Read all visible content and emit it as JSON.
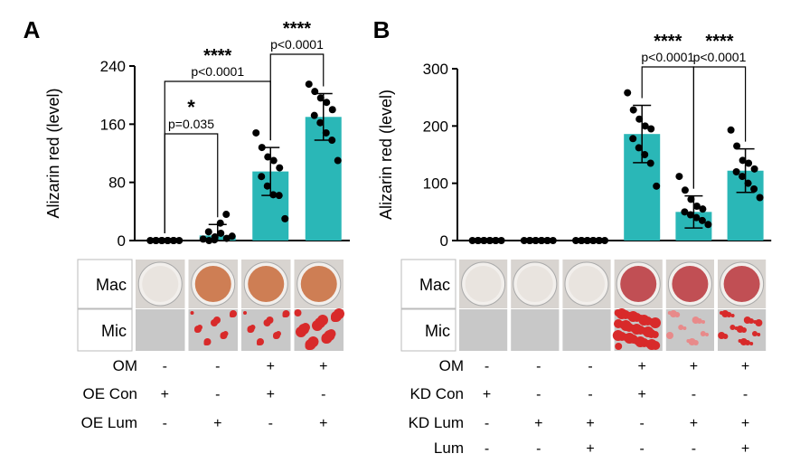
{
  "colors": {
    "bar": "#2ab7b7",
    "point": "#000000",
    "axis": "#000000",
    "mac_light_well": "#e9e4df",
    "mac_red_well": "#b8323a",
    "mac_orange_well": "#c86a3a",
    "mic_gray": "#c8c8c8",
    "mic_red": "#d82a2a"
  },
  "chart_data": [
    {
      "type": "bar",
      "panel_label": "A",
      "ylabel": "Alizarin red (level)",
      "ylim": [
        0,
        240
      ],
      "yticks": [
        "0",
        "80",
        "160",
        "240"
      ],
      "ytick_values": [
        0,
        80,
        160,
        240
      ],
      "categories": [
        "OE Con",
        "OE Lum",
        "OE Con + OM",
        "OE Lum + OM"
      ],
      "means": [
        0,
        7,
        95,
        170
      ],
      "errors": [
        0,
        15,
        33,
        32
      ],
      "points": [
        [
          0,
          0,
          0,
          0,
          0,
          0,
          0,
          0,
          0,
          0
        ],
        [
          2,
          0,
          5,
          10,
          3,
          12,
          1,
          24,
          36,
          6
        ],
        [
          148,
          128,
          115,
          110,
          100,
          88,
          75,
          63,
          62,
          30
        ],
        [
          215,
          205,
          196,
          190,
          180,
          172,
          162,
          148,
          138,
          110
        ]
      ],
      "comparisons": [
        {
          "from": 0,
          "to": 1,
          "stars": "*",
          "p": "p=0.035"
        },
        {
          "from": 0,
          "to": 2,
          "stars": "****",
          "p": "p<0.0001"
        },
        {
          "from": 2,
          "to": 3,
          "stars": "****",
          "p": "p<0.0001"
        }
      ],
      "image_rows": [
        {
          "label": "Mac",
          "kind": "mac",
          "tones": [
            "light",
            "orange",
            "orange",
            "orange"
          ]
        },
        {
          "label": "Mic",
          "kind": "mic",
          "tones": [
            "gray",
            "spots",
            "spots",
            "dense"
          ]
        }
      ],
      "conditions": [
        {
          "label": "OM",
          "values": [
            "-",
            "-",
            "+",
            "+"
          ]
        },
        {
          "label": "OE Con",
          "values": [
            "+",
            "-",
            "+",
            "-"
          ]
        },
        {
          "label": "OE Lum",
          "values": [
            "-",
            "+",
            "-",
            "+"
          ]
        }
      ]
    },
    {
      "type": "bar",
      "panel_label": "B",
      "ylabel": "Alizarin red (level)",
      "ylim": [
        0,
        300
      ],
      "yticks": [
        "0",
        "100",
        "200",
        "300"
      ],
      "ytick_values": [
        0,
        100,
        200,
        300
      ],
      "categories": [
        "KD Con",
        "KD Lum",
        "KD Lum + Lum",
        "KD Con + OM",
        "KD Lum + OM",
        "KD Lum + Lum + OM"
      ],
      "means": [
        0,
        0,
        0,
        186,
        50,
        122
      ],
      "errors": [
        0,
        0,
        0,
        50,
        28,
        38
      ],
      "points": [
        [
          0,
          0,
          0,
          0,
          0,
          0,
          0,
          0,
          0,
          0
        ],
        [
          0,
          0,
          0,
          0,
          0,
          0,
          0,
          0,
          0,
          0
        ],
        [
          0,
          0,
          0,
          0,
          0,
          0,
          0,
          0,
          0,
          0
        ],
        [
          258,
          228,
          212,
          200,
          195,
          178,
          162,
          150,
          135,
          95
        ],
        [
          112,
          88,
          72,
          60,
          55,
          50,
          45,
          40,
          35,
          28
        ],
        [
          193,
          165,
          140,
          135,
          125,
          120,
          112,
          100,
          90,
          75
        ]
      ],
      "comparisons": [
        {
          "from": 3,
          "to": 4,
          "stars": "****",
          "p": "p<0.0001"
        },
        {
          "from": 4,
          "to": 5,
          "stars": "****",
          "p": "p<0.0001"
        }
      ],
      "image_rows": [
        {
          "label": "Mac",
          "kind": "mac",
          "tones": [
            "light",
            "light",
            "light",
            "red",
            "red",
            "red"
          ]
        },
        {
          "label": "Mic",
          "kind": "mic",
          "tones": [
            "gray",
            "gray",
            "gray",
            "dense",
            "pale",
            "spots"
          ]
        }
      ],
      "conditions": [
        {
          "label": "OM",
          "values": [
            "-",
            "-",
            "-",
            "+",
            "+",
            "+"
          ]
        },
        {
          "label": "KD Con",
          "values": [
            "+",
            "-",
            "-",
            "+",
            "-",
            "-"
          ]
        },
        {
          "label": "KD Lum",
          "values": [
            "-",
            "+",
            "+",
            "-",
            "+",
            "+"
          ]
        },
        {
          "label": "Lum",
          "values": [
            "-",
            "-",
            "+",
            "-",
            "-",
            "+"
          ]
        }
      ]
    }
  ]
}
